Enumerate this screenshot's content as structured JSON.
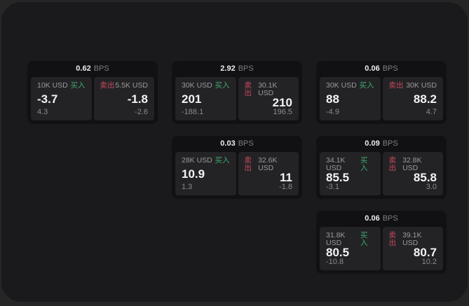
{
  "labels": {
    "bps_unit": "BPS",
    "buy": "买入",
    "sell": "卖出"
  },
  "colors": {
    "page_background": "#262626",
    "panel_background": "#1a1a1c",
    "card_background": "#111113",
    "tile_background": "#232326",
    "buy_green": "#3fa96a",
    "sell_red": "#c94a5c",
    "value_white": "#f4f4f4",
    "muted_gray": "#8a8a8a"
  },
  "cards": [
    {
      "bps": "0.62",
      "col": "1",
      "row": "1",
      "buy": {
        "amount": "10K USD",
        "price": "-3.7",
        "change": "4.3"
      },
      "sell": {
        "amount": "5.5K USD",
        "price": "-1.8",
        "change": "-2.6"
      }
    },
    {
      "bps": "2.92",
      "col": "2",
      "row": "1",
      "buy": {
        "amount": "30K USD",
        "price": "201",
        "change": "-188.1"
      },
      "sell": {
        "amount": "30.1K USD",
        "price": "210",
        "change": "196.5"
      }
    },
    {
      "bps": "0.06",
      "col": "3",
      "row": "1",
      "buy": {
        "amount": "30K USD",
        "price": "88",
        "change": "-4.9"
      },
      "sell": {
        "amount": "30K USD",
        "price": "88.2",
        "change": "4.7"
      }
    },
    {
      "bps": "0.03",
      "col": "2",
      "row": "2",
      "buy": {
        "amount": "28K USD",
        "price": "10.9",
        "change": "1.3"
      },
      "sell": {
        "amount": "32.6K USD",
        "price": "11",
        "change": "-1.8"
      }
    },
    {
      "bps": "0.09",
      "col": "3",
      "row": "2",
      "buy": {
        "amount": "34.1K USD",
        "price": "85.5",
        "change": "-3.1"
      },
      "sell": {
        "amount": "32.8K USD",
        "price": "85.8",
        "change": "3.0"
      }
    },
    {
      "bps": "0.06",
      "col": "3",
      "row": "3",
      "buy": {
        "amount": "31.8K USD",
        "price": "80.5",
        "change": "-10.8"
      },
      "sell": {
        "amount": "39.1K USD",
        "price": "80.7",
        "change": "10.2"
      }
    }
  ]
}
